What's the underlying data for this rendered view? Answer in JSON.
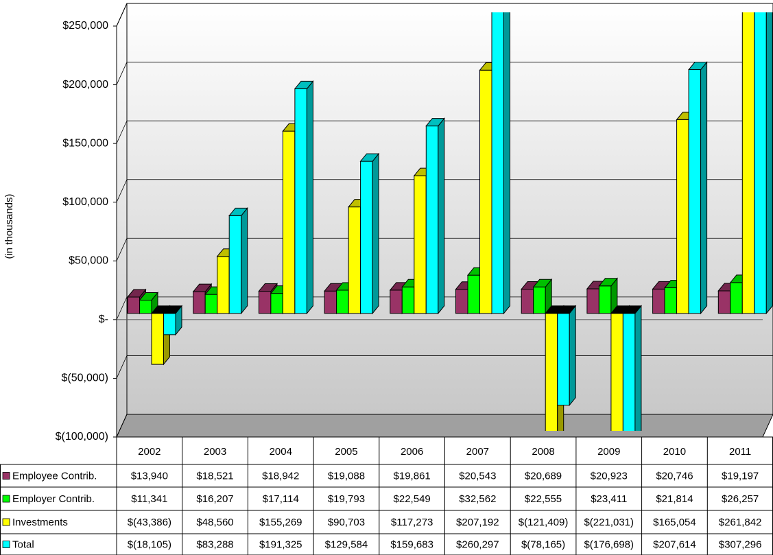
{
  "chart_data": {
    "type": "bar3d",
    "y_axis_label": "(in thousands)",
    "categories": [
      "2002",
      "2003",
      "2004",
      "2005",
      "2006",
      "2007",
      "2008",
      "2009",
      "2010",
      "2011"
    ],
    "series": [
      {
        "name": "Employee Contrib.",
        "color": "#993366",
        "values": [
          13940,
          18521,
          18942,
          19088,
          19861,
          20543,
          20689,
          20923,
          20746,
          19197
        ],
        "value_labels": [
          "$13,940",
          "$18,521",
          "$18,942",
          "$19,088",
          "$19,861",
          "$20,543",
          "$20,689",
          "$20,923",
          "$20,746",
          "$19,197"
        ]
      },
      {
        "name": "Employer Contrib.",
        "color": "#00ff00",
        "values": [
          11341,
          16207,
          17114,
          19793,
          22549,
          32562,
          22555,
          23411,
          21814,
          26257
        ],
        "value_labels": [
          "$11,341",
          "$16,207",
          "$17,114",
          "$19,793",
          "$22,549",
          "$32,562",
          "$22,555",
          "$23,411",
          "$21,814",
          "$26,257"
        ]
      },
      {
        "name": "Investments",
        "color": "#ffff00",
        "values": [
          -43386,
          48560,
          155269,
          90703,
          117273,
          207192,
          -121409,
          -221031,
          165054,
          261842
        ],
        "value_labels": [
          "$(43,386)",
          "$48,560",
          "$155,269",
          "$90,703",
          "$117,273",
          "$207,192",
          "$(121,409)",
          "$(221,031)",
          "$165,054",
          "$261,842"
        ]
      },
      {
        "name": "Total",
        "color": "#00ffff",
        "values": [
          -18105,
          83288,
          191325,
          129584,
          159683,
          260297,
          -78165,
          -176698,
          207614,
          307296
        ],
        "value_labels": [
          "$(18,105)",
          "$83,288",
          "$191,325",
          "$129,584",
          "$159,683",
          "$260,297",
          "$(78,165)",
          "$(176,698)",
          "$207,614",
          "$307,296"
        ]
      }
    ],
    "ylim": [
      -100000,
      250000
    ],
    "yticks": [
      {
        "value": -100000,
        "label": "$(100,000)"
      },
      {
        "value": -50000,
        "label": "$(50,000)"
      },
      {
        "value": 0,
        "label": "$-"
      },
      {
        "value": 50000,
        "label": "$50,000"
      },
      {
        "value": 100000,
        "label": "$100,000"
      },
      {
        "value": 150000,
        "label": "$150,000"
      },
      {
        "value": 200000,
        "label": "$200,000"
      },
      {
        "value": 250000,
        "label": "$250,000"
      }
    ],
    "grid": true,
    "data_table": true
  }
}
